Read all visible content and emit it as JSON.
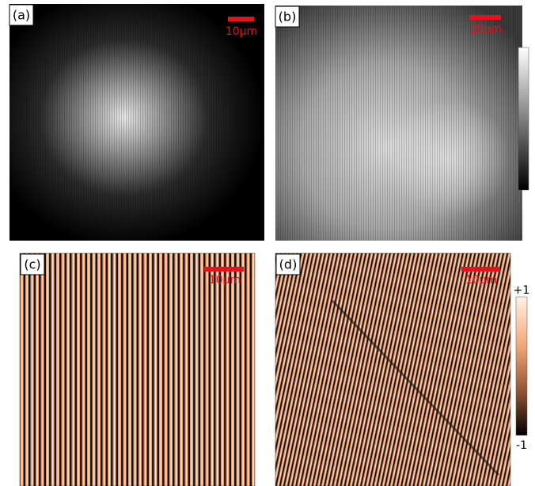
{
  "panels": [
    {
      "label": "(a)",
      "scale_bar": "10μm"
    },
    {
      "label": "(b)",
      "scale_bar": "20μm"
    },
    {
      "label": "(c)",
      "scale_bar": "10μm"
    },
    {
      "label": "(d)",
      "scale_bar": "10μm"
    }
  ],
  "phase_colorbar": {
    "top": "+1",
    "bottom": "-1"
  }
}
